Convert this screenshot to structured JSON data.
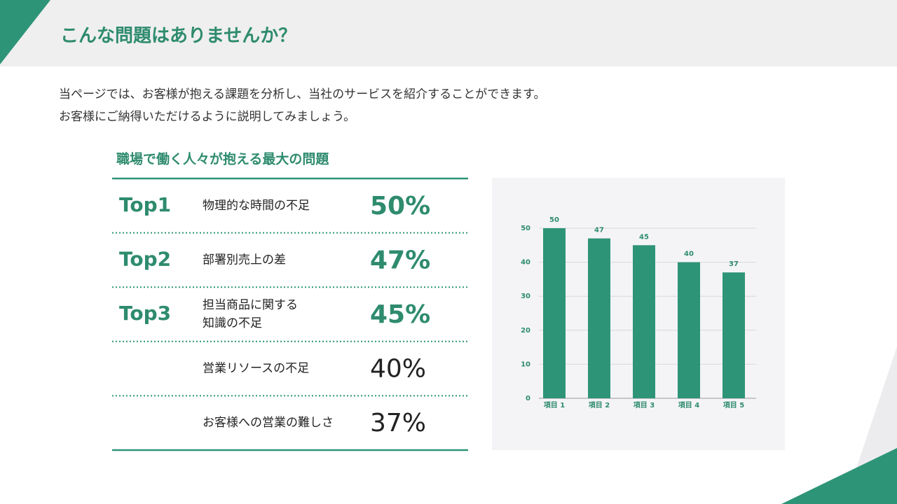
{
  "header": {
    "title": "こんな問題はありませんか？"
  },
  "intro": [
    "当ページでは、お客様が抱える課題を分析し、当社のサービスを紹介することができます。",
    "お客様にご納得いただけるように説明してみましょう。"
  ],
  "table": {
    "title": "職場で働く人々が抱える最大の問題",
    "rows": [
      {
        "rank": "Top1",
        "problem": "物理的な時間の不足",
        "percent": "50%"
      },
      {
        "rank": "Top2",
        "problem": "部署別売上の差",
        "percent": "47%"
      },
      {
        "rank": "Top3",
        "problem": "担当商品に関する\n知識の不足",
        "percent": "45%"
      },
      {
        "problem": "営業リソースの不足",
        "percent": "40%"
      },
      {
        "problem": "お客様への営業の難しさ",
        "percent": "37%"
      }
    ]
  },
  "chart_data": {
    "type": "bar",
    "categories": [
      "項目 1",
      "項目 2",
      "項目 3",
      "項目 4",
      "項目 5"
    ],
    "values": [
      50,
      47,
      45,
      40,
      37
    ],
    "color": "#2e9478",
    "ylim": [
      0,
      50
    ],
    "yticks": [
      0,
      10,
      20,
      30,
      40,
      50
    ],
    "grid": true
  }
}
